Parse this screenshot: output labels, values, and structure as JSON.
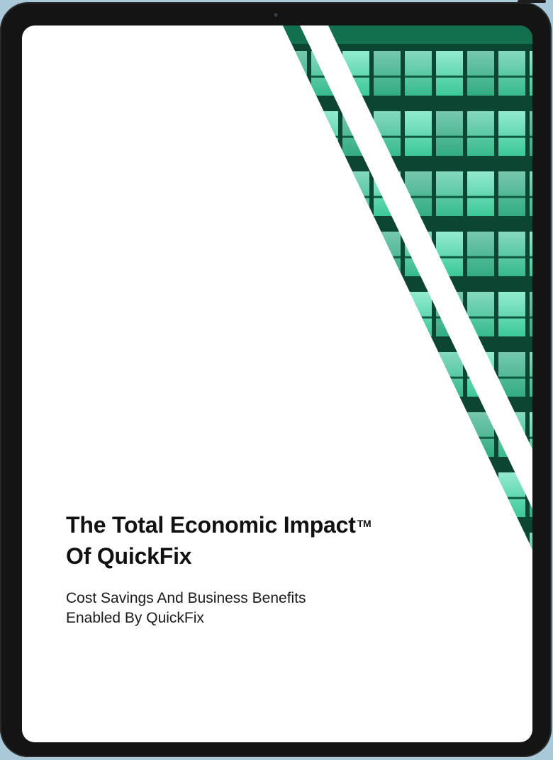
{
  "document": {
    "title_line1": "The Total Economic Impact",
    "title_trademark": "TM",
    "title_line2": "Of QuickFix",
    "subtitle_line1": "Cost Savings And Business Benefits",
    "subtitle_line2": "Enabled By QuickFix"
  },
  "colors": {
    "building_dark": "#0e4a36",
    "building_glass": "#5fe0b8",
    "device_frame": "#141414",
    "background": "#a9c8d8"
  },
  "icons": {
    "cover_image": "glass-building-facade-image"
  }
}
